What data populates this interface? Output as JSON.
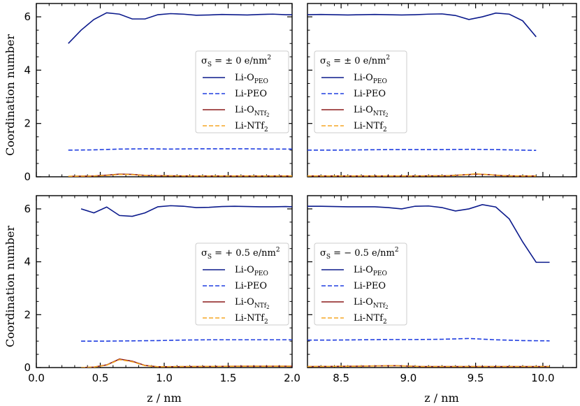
{
  "figure": {
    "xlabel": "z / nm",
    "ylabel": "Coordination number"
  },
  "legend_entries": [
    {
      "base": "Li-O",
      "sub": "PEO",
      "tail": "",
      "style": "solid",
      "color": "#0b1a8c"
    },
    {
      "base": "Li-PEO",
      "sub": "",
      "tail": "",
      "style": "dashed",
      "color": "#1f3de0"
    },
    {
      "base": "Li-O",
      "sub": "NTf",
      "sub2": "2",
      "tail": "",
      "style": "solid",
      "color": "#8b1a1a"
    },
    {
      "base": "Li-NTf",
      "sub": "2",
      "tail": "",
      "style": "dashed",
      "color": "#f5a623"
    }
  ],
  "chart_data": [
    {
      "type": "line",
      "panel": "top-left",
      "legend_title": "σ_S = ± 0 e/nm²",
      "legend_title_parts": {
        "sigma": "σ",
        "sub": "S",
        "value": " = ± 0 e/nm",
        "sup": "2"
      },
      "xlim": [
        0.0,
        2.0
      ],
      "ylim": [
        0,
        6.5
      ],
      "xticks": [
        "0.0",
        "0.5",
        "1.0",
        "1.5",
        "2.0"
      ],
      "yticks": [
        "0",
        "2",
        "4",
        "6"
      ],
      "legend_position": "center-right",
      "series": [
        {
          "name": "Li-OPEO",
          "x": [
            0.25,
            0.35,
            0.45,
            0.55,
            0.65,
            0.75,
            0.85,
            0.95,
            1.05,
            1.15,
            1.25,
            1.35,
            1.45,
            1.55,
            1.65,
            1.75,
            1.85,
            1.95,
            2.0
          ],
          "y": [
            5.0,
            5.5,
            5.9,
            6.15,
            6.1,
            5.92,
            5.92,
            6.08,
            6.12,
            6.1,
            6.06,
            6.07,
            6.09,
            6.08,
            6.07,
            6.09,
            6.1,
            6.08,
            6.08
          ]
        },
        {
          "name": "Li-PEO",
          "x": [
            0.25,
            0.45,
            0.65,
            0.85,
            1.05,
            1.25,
            1.45,
            1.65,
            1.85,
            2.0
          ],
          "y": [
            1.0,
            1.01,
            1.04,
            1.05,
            1.04,
            1.05,
            1.05,
            1.05,
            1.04,
            1.04
          ]
        },
        {
          "name": "Li-ONTf2",
          "x": [
            0.25,
            0.45,
            0.55,
            0.65,
            0.75,
            0.85,
            0.95,
            1.2,
            1.6,
            2.0
          ],
          "y": [
            0.02,
            0.03,
            0.06,
            0.1,
            0.09,
            0.05,
            0.04,
            0.03,
            0.03,
            0.03
          ]
        },
        {
          "name": "Li-NTf2",
          "x": [
            0.25,
            0.45,
            0.55,
            0.65,
            0.75,
            0.85,
            0.95,
            1.2,
            1.6,
            2.0
          ],
          "y": [
            0.02,
            0.03,
            0.05,
            0.09,
            0.08,
            0.05,
            0.04,
            0.03,
            0.03,
            0.03
          ]
        }
      ]
    },
    {
      "type": "line",
      "panel": "top-right",
      "legend_title": "σ_S = ± 0 e/nm²",
      "legend_title_parts": {
        "sigma": "σ",
        "sub": "S",
        "value": " = ± 0 e/nm",
        "sup": "2"
      },
      "xlim": [
        8.25,
        10.25
      ],
      "ylim": [
        0,
        6.5
      ],
      "xticks": [
        "8.5",
        "9.0",
        "9.5",
        "10.0"
      ],
      "xtick_values": [
        8.5,
        9.0,
        9.5,
        10.0
      ],
      "yticks": [
        "0",
        "2",
        "4",
        "6"
      ],
      "legend_position": "center-left",
      "series": [
        {
          "name": "Li-OPEO",
          "x": [
            8.25,
            8.35,
            8.45,
            8.55,
            8.65,
            8.75,
            8.85,
            8.95,
            9.05,
            9.15,
            9.25,
            9.35,
            9.45,
            9.55,
            9.65,
            9.75,
            9.85,
            9.95
          ],
          "y": [
            6.08,
            6.09,
            6.08,
            6.07,
            6.08,
            6.09,
            6.08,
            6.07,
            6.08,
            6.1,
            6.11,
            6.05,
            5.9,
            6.0,
            6.14,
            6.1,
            5.85,
            5.25
          ]
        },
        {
          "name": "Li-PEO",
          "x": [
            8.25,
            8.45,
            8.65,
            8.85,
            9.05,
            9.25,
            9.45,
            9.65,
            9.85,
            9.95
          ],
          "y": [
            1.0,
            1.0,
            1.01,
            1.02,
            1.02,
            1.02,
            1.03,
            1.02,
            1.0,
            0.99
          ]
        },
        {
          "name": "Li-ONTf2",
          "x": [
            8.25,
            8.6,
            9.0,
            9.3,
            9.4,
            9.5,
            9.6,
            9.7,
            9.8,
            9.95
          ],
          "y": [
            0.03,
            0.03,
            0.03,
            0.04,
            0.07,
            0.1,
            0.08,
            0.04,
            0.03,
            0.03
          ]
        },
        {
          "name": "Li-NTf2",
          "x": [
            8.25,
            8.6,
            9.0,
            9.3,
            9.4,
            9.5,
            9.6,
            9.7,
            9.8,
            9.95
          ],
          "y": [
            0.03,
            0.03,
            0.03,
            0.04,
            0.07,
            0.11,
            0.08,
            0.04,
            0.03,
            0.03
          ]
        }
      ]
    },
    {
      "type": "line",
      "panel": "bottom-left",
      "legend_title": "σ_S = + 0.5 e/nm²",
      "legend_title_parts": {
        "sigma": "σ",
        "sub": "S",
        "value": " = + 0.5 e/nm",
        "sup": "2"
      },
      "xlim": [
        0.0,
        2.0
      ],
      "ylim": [
        0,
        6.5
      ],
      "xticks": [
        "0.0",
        "0.5",
        "1.0",
        "1.5",
        "2.0"
      ],
      "yticks": [
        "0",
        "2",
        "4",
        "6"
      ],
      "legend_position": "center-right",
      "series": [
        {
          "name": "Li-OPEO",
          "x": [
            0.35,
            0.45,
            0.55,
            0.65,
            0.75,
            0.85,
            0.95,
            1.05,
            1.15,
            1.25,
            1.35,
            1.45,
            1.55,
            1.65,
            1.75,
            1.85,
            1.95,
            2.0
          ],
          "y": [
            6.0,
            5.85,
            6.07,
            5.75,
            5.72,
            5.85,
            6.08,
            6.12,
            6.1,
            6.05,
            6.06,
            6.09,
            6.1,
            6.09,
            6.08,
            6.08,
            6.09,
            6.08
          ]
        },
        {
          "name": "Li-PEO",
          "x": [
            0.35,
            0.55,
            0.75,
            0.95,
            1.15,
            1.35,
            1.55,
            1.75,
            1.95,
            2.0
          ],
          "y": [
            1.0,
            1.0,
            1.01,
            1.02,
            1.04,
            1.05,
            1.05,
            1.05,
            1.05,
            1.05
          ]
        },
        {
          "name": "Li-ONTf2",
          "x": [
            0.35,
            0.45,
            0.55,
            0.65,
            0.75,
            0.85,
            0.95,
            1.2,
            1.6,
            2.0
          ],
          "y": [
            0.0,
            0.02,
            0.1,
            0.32,
            0.24,
            0.08,
            0.03,
            0.04,
            0.05,
            0.05
          ]
        },
        {
          "name": "Li-NTf2",
          "x": [
            0.35,
            0.45,
            0.55,
            0.65,
            0.75,
            0.85,
            0.95,
            1.2,
            1.6,
            2.0
          ],
          "y": [
            0.0,
            0.02,
            0.09,
            0.3,
            0.22,
            0.07,
            0.03,
            0.04,
            0.05,
            0.05
          ]
        }
      ]
    },
    {
      "type": "line",
      "panel": "bottom-right",
      "legend_title": "σ_S = − 0.5 e/nm²",
      "legend_title_parts": {
        "sigma": "σ",
        "sub": "S",
        "value": " = − 0.5 e/nm",
        "sup": "2"
      },
      "xlim": [
        8.25,
        10.25
      ],
      "ylim": [
        0,
        6.5
      ],
      "xticks": [
        "8.5",
        "9.0",
        "9.5",
        "10.0"
      ],
      "xtick_values": [
        8.5,
        9.0,
        9.5,
        10.0
      ],
      "yticks": [
        "0",
        "2",
        "4",
        "6"
      ],
      "legend_position": "center-left",
      "series": [
        {
          "name": "Li-OPEO",
          "x": [
            8.25,
            8.35,
            8.45,
            8.55,
            8.65,
            8.75,
            8.85,
            8.95,
            9.05,
            9.15,
            9.25,
            9.35,
            9.45,
            9.55,
            9.65,
            9.75,
            9.85,
            9.95,
            10.05
          ],
          "y": [
            6.1,
            6.1,
            6.09,
            6.08,
            6.08,
            6.08,
            6.05,
            6.0,
            6.1,
            6.11,
            6.05,
            5.92,
            6.0,
            6.16,
            6.07,
            5.62,
            4.75,
            3.98,
            3.98
          ]
        },
        {
          "name": "Li-PEO",
          "x": [
            8.25,
            8.45,
            8.65,
            8.85,
            9.05,
            9.25,
            9.45,
            9.65,
            9.85,
            10.05
          ],
          "y": [
            1.04,
            1.04,
            1.05,
            1.06,
            1.06,
            1.07,
            1.1,
            1.05,
            1.02,
            1.01
          ]
        },
        {
          "name": "Li-ONTf2",
          "x": [
            8.25,
            8.6,
            8.9,
            9.1,
            9.4,
            9.7,
            10.05
          ],
          "y": [
            0.04,
            0.05,
            0.07,
            0.04,
            0.04,
            0.04,
            0.04
          ]
        },
        {
          "name": "Li-NTf2",
          "x": [
            8.25,
            8.6,
            8.9,
            9.1,
            9.4,
            9.7,
            10.05
          ],
          "y": [
            0.04,
            0.05,
            0.07,
            0.04,
            0.04,
            0.04,
            0.04
          ]
        }
      ]
    }
  ]
}
